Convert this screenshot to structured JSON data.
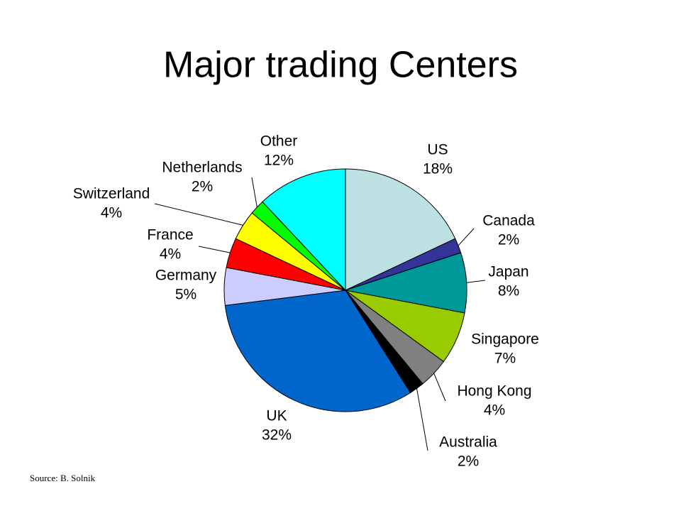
{
  "chart_data": {
    "type": "pie",
    "title": "Major trading Centers",
    "categories": [
      "US",
      "Canada",
      "Japan",
      "Singapore",
      "Hong Kong",
      "Australia",
      "UK",
      "Germany",
      "France",
      "Switzerland",
      "Netherlands",
      "Other"
    ],
    "values": [
      18,
      2,
      8,
      7,
      4,
      2,
      32,
      5,
      4,
      4,
      2,
      12
    ],
    "value_labels": [
      "18%",
      "2%",
      "8%",
      "7%",
      "4%",
      "2%",
      "32%",
      "5%",
      "4%",
      "4%",
      "2%",
      "12%"
    ],
    "colors": [
      "#bde0e3",
      "#333399",
      "#009999",
      "#99cc00",
      "#808080",
      "#000000",
      "#0066cc",
      "#ccccff",
      "#ff0000",
      "#ffff00",
      "#00ff00",
      "#00ffff"
    ],
    "source": "Source:  B. Solnik"
  }
}
